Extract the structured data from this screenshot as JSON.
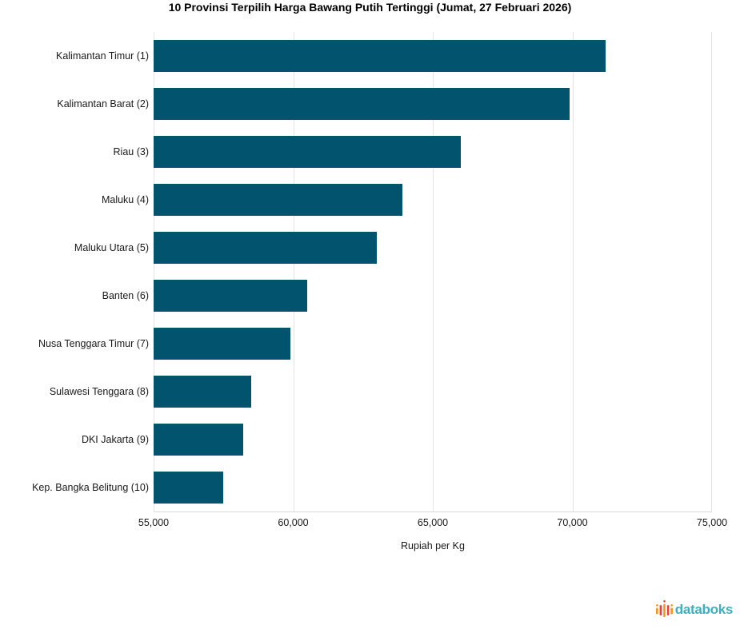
{
  "chart_data": {
    "type": "bar",
    "orientation": "horizontal",
    "title": "10 Provinsi Terpilih Harga Bawang Putih Tertinggi (Jumat, 27 Februari 2026)",
    "categories": [
      "Kalimantan Timur (1)",
      "Kalimantan Barat (2)",
      "Riau (3)",
      "Maluku (4)",
      "Maluku Utara (5)",
      "Banten (6)",
      "Nusa Tenggara Timur (7)",
      "Sulawesi Tenggara (8)",
      "DKI Jakarta (9)",
      "Kep. Bangka Belitung (10)"
    ],
    "values": [
      71200,
      69900,
      66000,
      63900,
      63000,
      60500,
      59900,
      58500,
      58200,
      57500
    ],
    "xlabel": "Rupiah per Kg",
    "ylabel": "",
    "xlim": [
      55000,
      75000
    ],
    "xticks": [
      55000,
      60000,
      65000,
      70000,
      75000
    ],
    "xtick_labels": [
      "55,000",
      "60,000",
      "65,000",
      "70,000",
      "75,000"
    ],
    "grid": true,
    "legend": "none",
    "bar_color": "#02546e",
    "gridline_color": "#e3e3e3"
  },
  "branding": {
    "logo_text": "databoks",
    "logo_text_color": "#3eafbe",
    "icon_colors": {
      "orange": "#f7941d",
      "red": "#ee4037"
    }
  }
}
